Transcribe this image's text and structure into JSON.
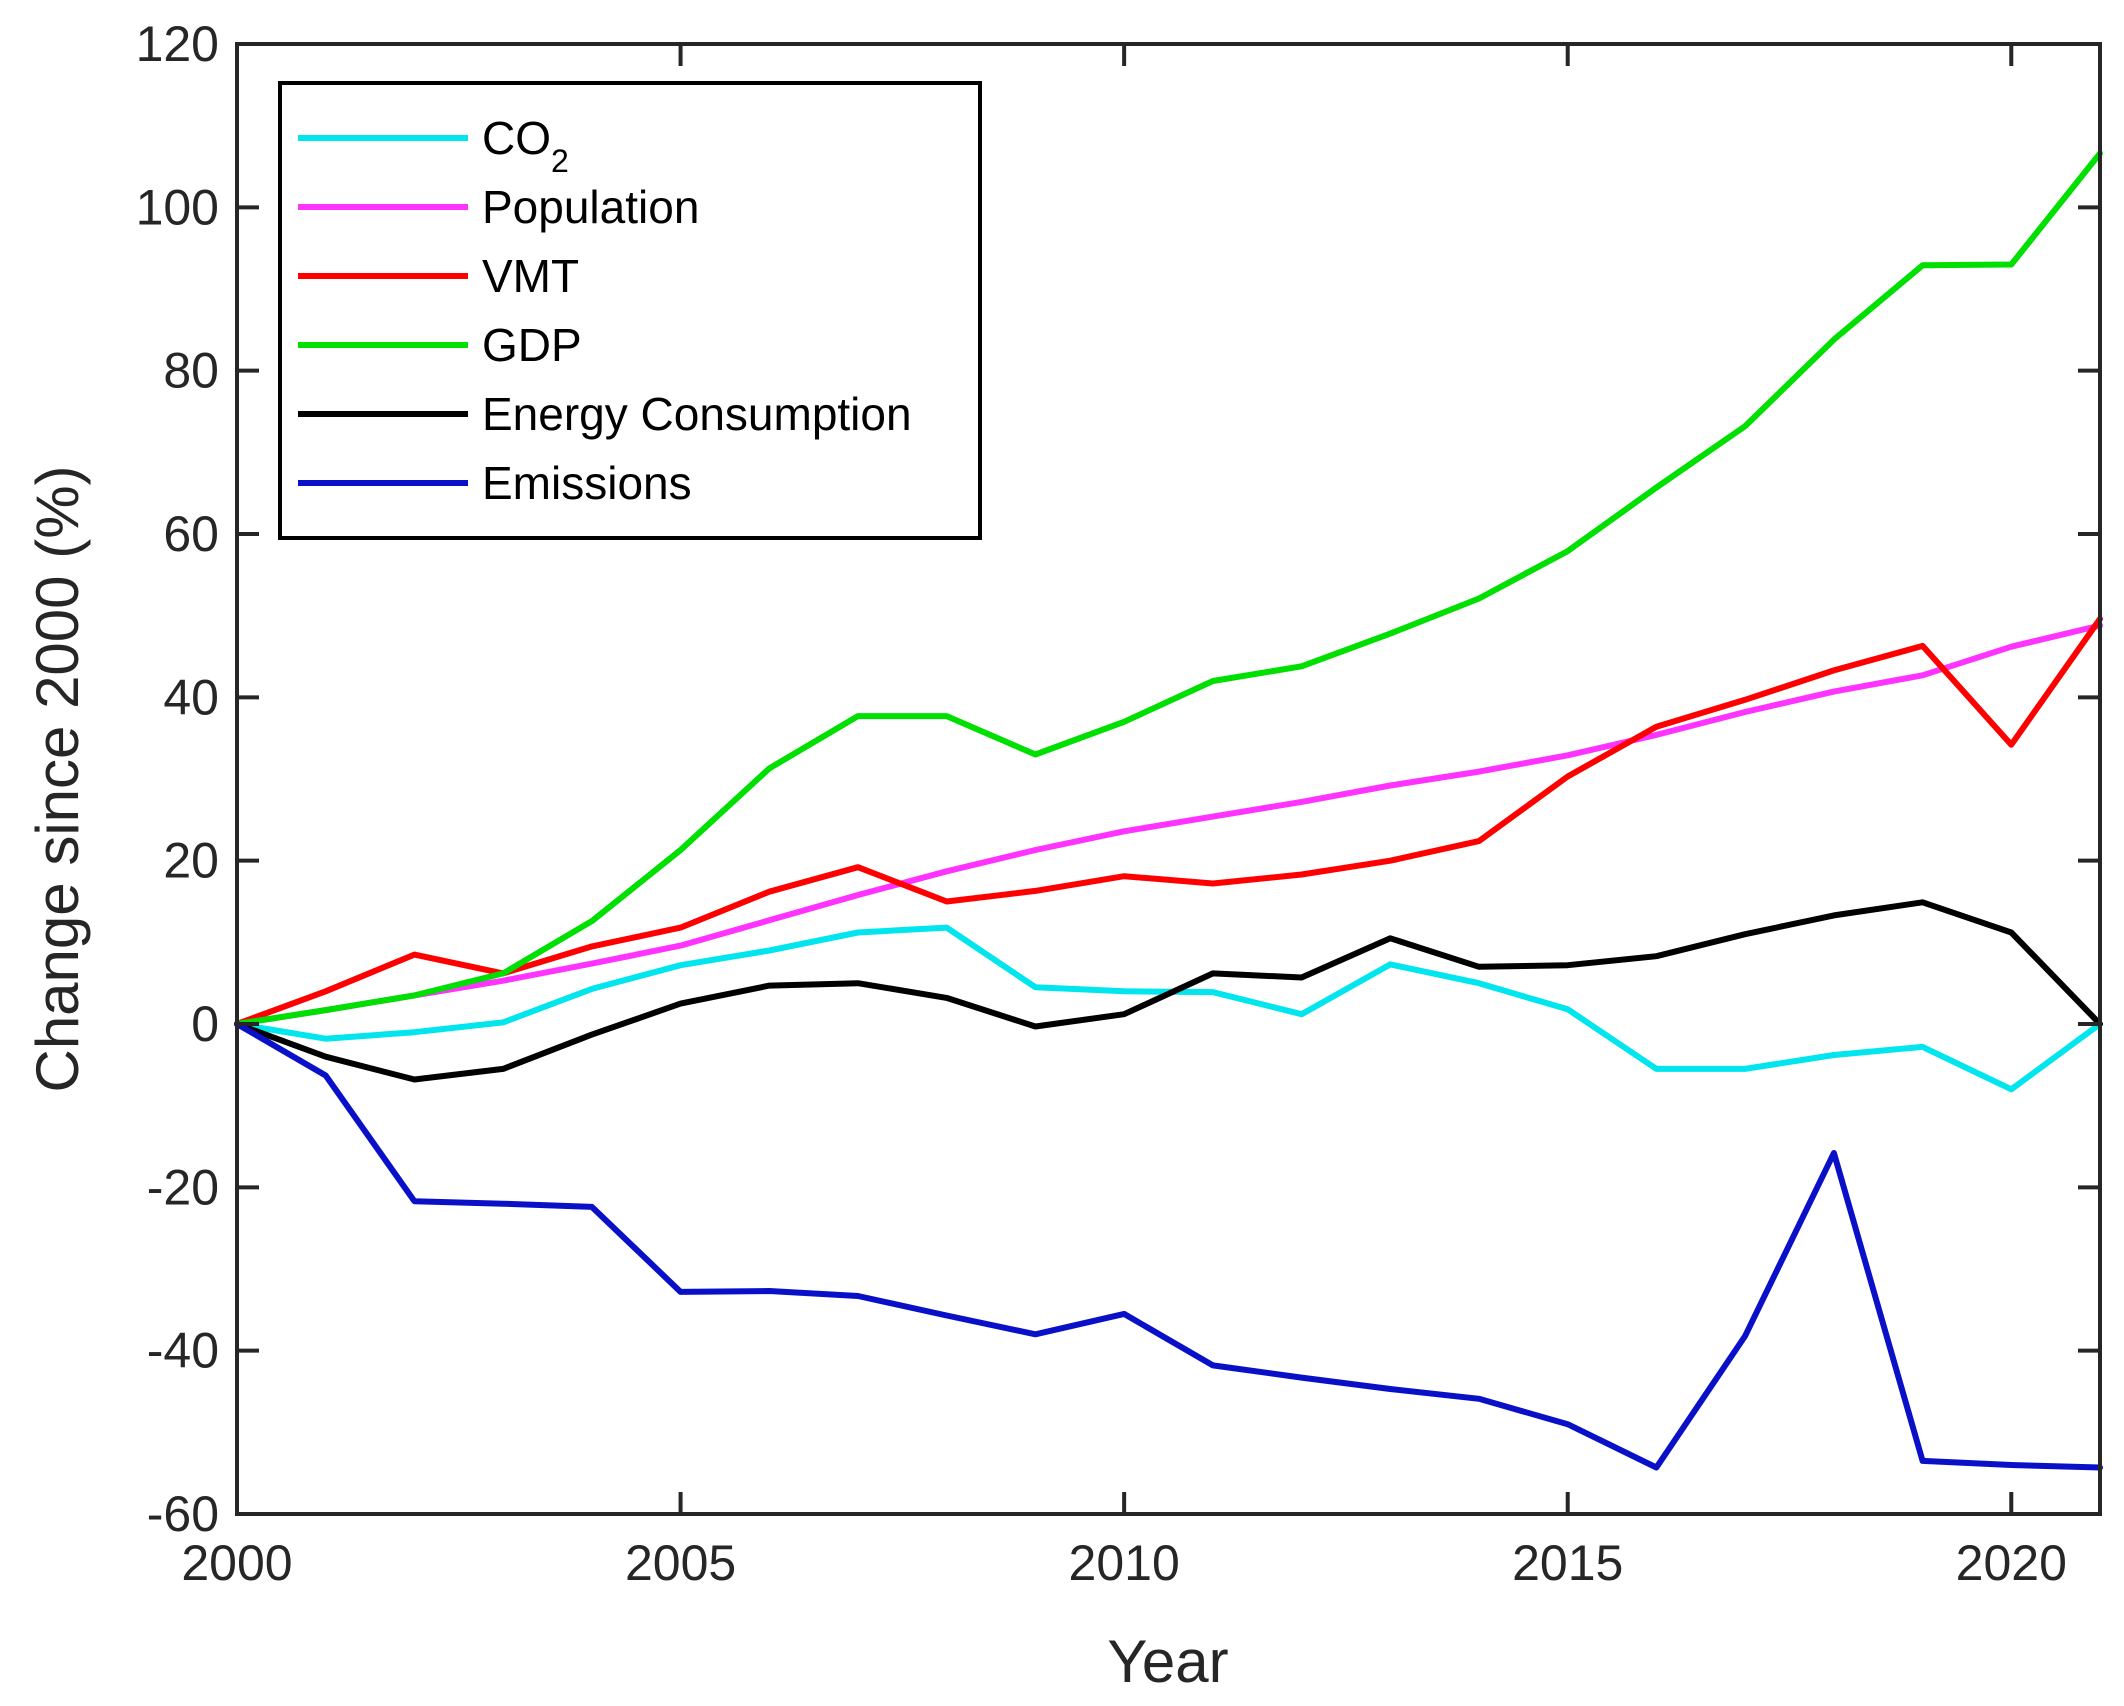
{
  "chart_data": {
    "type": "line",
    "title": "",
    "xlabel": "Year",
    "ylabel": "Change since 2000 (%)",
    "xlim": [
      2000,
      2021
    ],
    "ylim": [
      -60,
      120
    ],
    "xticks": [
      2000,
      2005,
      2010,
      2015,
      2020
    ],
    "yticks": [
      -60,
      -40,
      -20,
      0,
      20,
      40,
      60,
      80,
      100,
      120
    ],
    "xtick_labels": [
      "2000",
      "2005",
      "2010",
      "2015",
      "2020"
    ],
    "ytick_labels": [
      "-60",
      "-40",
      "-20",
      "0",
      "20",
      "40",
      "60",
      "80",
      "100",
      "120"
    ],
    "grid": false,
    "legend_position": "top-left",
    "x": [
      2000,
      2001,
      2002,
      2003,
      2004,
      2005,
      2006,
      2007,
      2008,
      2009,
      2010,
      2011,
      2012,
      2013,
      2014,
      2015,
      2016,
      2017,
      2018,
      2019,
      2020,
      2021
    ],
    "series": [
      {
        "name": "CO",
        "name_subscript": "2",
        "color": "#00e5ee",
        "values": [
          0,
          -1.8,
          -1.0,
          0.2,
          4.3,
          7.2,
          9.0,
          11.2,
          11.8,
          4.5,
          4.0,
          3.9,
          1.2,
          7.3,
          5.0,
          1.8,
          -5.5,
          -5.5,
          -3.8,
          -2.8,
          -8.0,
          0
        ]
      },
      {
        "name": "Population",
        "color": "#ff33ff",
        "values": [
          0,
          1.7,
          3.5,
          5.3,
          7.4,
          9.6,
          12.7,
          15.8,
          18.7,
          21.3,
          23.6,
          25.4,
          27.2,
          29.2,
          30.9,
          32.9,
          35.4,
          38.2,
          40.7,
          42.7,
          46.2,
          48.8
        ]
      },
      {
        "name": "VMT",
        "color": "#ff0000",
        "values": [
          0,
          4.0,
          8.5,
          6.2,
          9.5,
          11.8,
          16.2,
          19.2,
          15.0,
          16.3,
          18.1,
          17.2,
          18.3,
          20.0,
          22.4,
          30.3,
          36.4,
          39.7,
          43.3,
          46.3,
          34.2,
          49.6
        ]
      },
      {
        "name": "GDP",
        "color": "#00e000",
        "values": [
          0,
          1.7,
          3.5,
          6.2,
          12.6,
          21.3,
          31.3,
          37.7,
          37.7,
          33.0,
          37.0,
          42.0,
          43.8,
          47.8,
          52.1,
          57.9,
          65.7,
          73.2,
          83.8,
          92.9,
          93.0,
          106.6
        ]
      },
      {
        "name": "Energy Consumption",
        "color": "#000000",
        "values": [
          0,
          -4.0,
          -6.8,
          -5.5,
          -1.3,
          2.5,
          4.7,
          5.0,
          3.2,
          -0.3,
          1.2,
          6.2,
          5.7,
          10.5,
          7.0,
          7.2,
          8.3,
          11.0,
          13.3,
          14.9,
          11.2,
          0
        ]
      },
      {
        "name": "Emissions",
        "color": "#0a10c8",
        "values": [
          0,
          -6.3,
          -21.7,
          -22.0,
          -22.4,
          -32.8,
          -32.7,
          -33.3,
          -35.7,
          -38.0,
          -35.5,
          -41.8,
          -43.3,
          -44.7,
          -45.9,
          -49.0,
          -54.3,
          -38.2,
          -15.8,
          -53.5,
          -54.0,
          -54.3
        ]
      }
    ]
  }
}
